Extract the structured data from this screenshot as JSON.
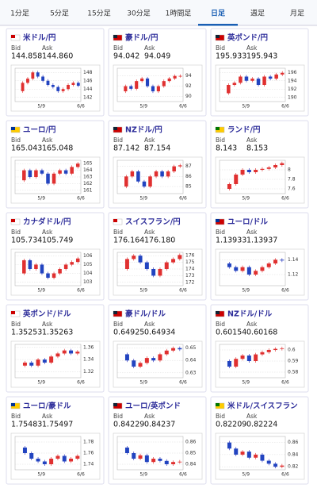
{
  "tabs": [
    "1分足",
    "5分足",
    "15分足",
    "30分足",
    "1時間足",
    "日足",
    "週足",
    "月足"
  ],
  "active_tab": 5,
  "bid_label": "Bid",
  "ask_label": "Ask",
  "x_labels": [
    "5/9",
    "6/6"
  ],
  "cards": [
    {
      "name": "米ドル/円",
      "bid": "144.858",
      "ask": "144.860",
      "ylim": [
        141,
        149
      ],
      "yticks": [
        142,
        144,
        146,
        148
      ],
      "closes": [
        143.5,
        145.5,
        146.5,
        148,
        147,
        146,
        145,
        144.5,
        143.5,
        144,
        145,
        145.5,
        144.8
      ]
    },
    {
      "name": "豪ドル/円",
      "bid": "94.042",
      "ask": "94.049",
      "ylim": [
        89,
        95.5
      ],
      "yticks": [
        90,
        92,
        94
      ],
      "closes": [
        91,
        92,
        91.5,
        93,
        93.5,
        92,
        91,
        92,
        93,
        93.5,
        94,
        94
      ]
    },
    {
      "name": "英ポンド/円",
      "bid": "195.933",
      "ask": "195.943",
      "ylim": [
        189,
        197
      ],
      "yticks": [
        190,
        192,
        194,
        196
      ],
      "closes": [
        191,
        193,
        193.5,
        195,
        194,
        194.5,
        193,
        195,
        194.5,
        195.5,
        195.9
      ]
    },
    {
      "name": "ユーロ/円",
      "bid": "165.043",
      "ask": "165.048",
      "ylim": [
        160.5,
        165.5
      ],
      "yticks": [
        161,
        162,
        163,
        164,
        165
      ],
      "closes": [
        162.5,
        164,
        163,
        164,
        163.5,
        162,
        163.5,
        164,
        163.5,
        164.5,
        165
      ]
    },
    {
      "name": "NZドル/円",
      "bid": "87.142",
      "ask": "87.154",
      "ylim": [
        84.3,
        87.6
      ],
      "yticks": [
        85,
        86,
        87
      ],
      "closes": [
        85,
        86,
        86.5,
        85.5,
        85,
        86,
        86.5,
        86,
        86.5,
        87,
        87.1
      ]
    },
    {
      "name": "ランド/円",
      "bid": "8.143",
      "ask": "8.153",
      "ylim": [
        7.5,
        8.2
      ],
      "yticks": [
        7.6,
        7.8,
        8
      ],
      "closes": [
        7.6,
        7.7,
        7.9,
        8,
        7.95,
        8,
        8.02,
        8.05,
        8.1,
        8.14
      ]
    },
    {
      "name": "カナダドル/円",
      "bid": "105.734",
      "ask": "105.749",
      "ylim": [
        102.6,
        106.4
      ],
      "yticks": [
        103,
        104,
        105,
        106
      ],
      "closes": [
        104,
        105.5,
        104.5,
        105,
        104,
        103.5,
        104,
        104.5,
        105,
        105.3,
        105.7
      ]
    },
    {
      "name": "スイスフラン/円",
      "bid": "176.164",
      "ask": "176.180",
      "ylim": [
        171.5,
        176.5
      ],
      "yticks": [
        172,
        173,
        174,
        175,
        176
      ],
      "closes": [
        174,
        175.5,
        176,
        175,
        174,
        173,
        174,
        175,
        175.5,
        176.1
      ]
    },
    {
      "name": "ユーロ/ドル",
      "bid": "1.13933",
      "ask": "1.13937",
      "ylim": [
        1.105,
        1.15
      ],
      "yticks": [
        1.12,
        1.14
      ],
      "closes": [
        1.135,
        1.13,
        1.125,
        1.13,
        1.12,
        1.125,
        1.13,
        1.135,
        1.14,
        1.139
      ]
    },
    {
      "name": "英ポンド/ドル",
      "bid": "1.35253",
      "ask": "1.35263",
      "ylim": [
        1.31,
        1.365
      ],
      "yticks": [
        1.32,
        1.34,
        1.36
      ],
      "closes": [
        1.33,
        1.335,
        1.33,
        1.34,
        1.335,
        1.345,
        1.35,
        1.355,
        1.35,
        1.353
      ]
    },
    {
      "name": "豪ドル/ドル",
      "bid": "0.64925",
      "ask": "0.64934",
      "ylim": [
        0.626,
        0.653
      ],
      "yticks": [
        0.63,
        0.64,
        0.65
      ],
      "closes": [
        0.645,
        0.64,
        0.635,
        0.638,
        0.642,
        0.64,
        0.645,
        0.648,
        0.65,
        0.649
      ]
    },
    {
      "name": "NZドル/ドル",
      "bid": "0.60154",
      "ask": "0.60168",
      "ylim": [
        0.575,
        0.605
      ],
      "yticks": [
        0.58,
        0.59,
        0.6
      ],
      "closes": [
        0.59,
        0.585,
        0.592,
        0.595,
        0.59,
        0.596,
        0.598,
        0.6,
        0.601,
        0.6015
      ]
    },
    {
      "name": "ユーロ/豪ドル",
      "bid": "1.75483",
      "ask": "1.75497",
      "ylim": [
        1.73,
        1.79
      ],
      "yticks": [
        1.74,
        1.76,
        1.78
      ],
      "closes": [
        1.77,
        1.76,
        1.75,
        1.745,
        1.74,
        1.75,
        1.755,
        1.745,
        1.75,
        1.755
      ]
    },
    {
      "name": "ユーロ/英ポンド",
      "bid": "0.84229",
      "ask": "0.84237",
      "ylim": [
        0.835,
        0.865
      ],
      "yticks": [
        0.84,
        0.85,
        0.86
      ],
      "closes": [
        0.855,
        0.85,
        0.845,
        0.848,
        0.842,
        0.845,
        0.843,
        0.84,
        0.842,
        0.8423
      ]
    },
    {
      "name": "米ドル/スイスフラン",
      "bid": "0.82209",
      "ask": "0.82224",
      "ylim": [
        0.815,
        0.87
      ],
      "yticks": [
        0.82,
        0.84,
        0.86
      ],
      "closes": [
        0.86,
        0.85,
        0.84,
        0.845,
        0.835,
        0.84,
        0.83,
        0.825,
        0.82,
        0.822
      ]
    }
  ]
}
